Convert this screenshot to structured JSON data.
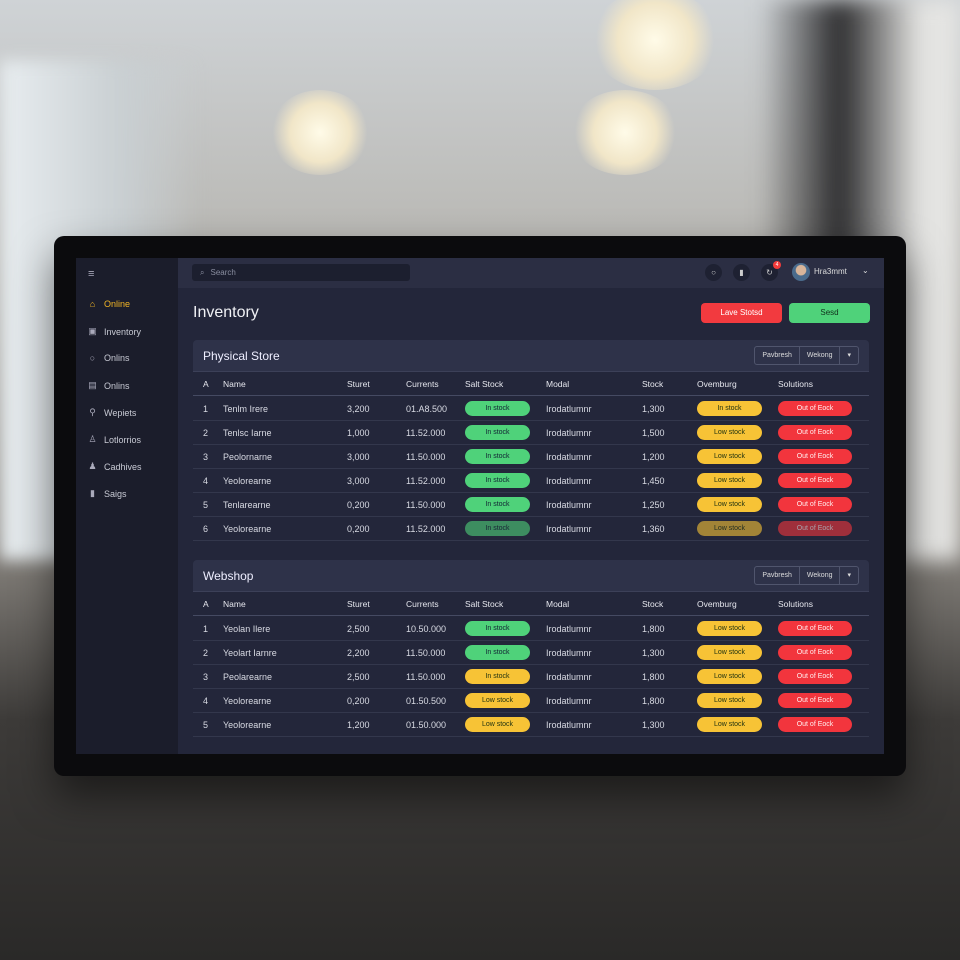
{
  "sidebar": {
    "items": [
      {
        "label": "Online",
        "icon": "home-icon",
        "active": true
      },
      {
        "label": "Inventory",
        "icon": "box-icon"
      },
      {
        "label": "Onlins",
        "icon": "circle-icon"
      },
      {
        "label": "Onlins",
        "icon": "list-icon"
      },
      {
        "label": "Wepiets",
        "icon": "pin-icon"
      },
      {
        "label": "Lotlorrios",
        "icon": "user-icon"
      },
      {
        "label": "Cadhives",
        "icon": "users-icon"
      },
      {
        "label": "Saigs",
        "icon": "chart-icon"
      }
    ]
  },
  "topbar": {
    "search_placeholder": "Search",
    "notification_count": "4",
    "user_name": "Hra3mmt"
  },
  "page": {
    "title": "Inventory",
    "btn_red": "Lave Stotsd",
    "btn_green": "Sesd"
  },
  "columns": [
    "A",
    "Name",
    "Sturet",
    "Currents",
    "Salt Stock",
    "Modal",
    "Stock",
    "Ovemburg",
    "Solutions"
  ],
  "sections": [
    {
      "title": "Physical Store",
      "seg": [
        "Pavbresh",
        "Wekong"
      ],
      "rows": [
        [
          "1",
          "Tenlm Irere",
          "3,200",
          "01.A8.500",
          [
            "In stock",
            "g"
          ],
          "Irodatlumnr",
          "1,300",
          [
            "In stock",
            "y"
          ],
          [
            "Out of Eock",
            "r"
          ]
        ],
        [
          "2",
          "Tenlsc Iarne",
          "1,000",
          "11.52.000",
          [
            "In stock",
            "g"
          ],
          "Irodatlumnr",
          "1,500",
          [
            "Low stock",
            "y"
          ],
          [
            "Out of Eock",
            "r"
          ]
        ],
        [
          "3",
          "Peolornarne",
          "3,000",
          "11.50.000",
          [
            "In stock",
            "g"
          ],
          "Irodatlumnr",
          "1,200",
          [
            "Low stock",
            "y"
          ],
          [
            "Out of Eock",
            "r"
          ]
        ],
        [
          "4",
          "Yeolorearne",
          "3,000",
          "11.52.000",
          [
            "In stock",
            "g"
          ],
          "Irodatlumnr",
          "1,450",
          [
            "Low stock",
            "y"
          ],
          [
            "Out of Eock",
            "r"
          ]
        ],
        [
          "5",
          "Tenlarearne",
          "0,200",
          "11.50.000",
          [
            "In stock",
            "g"
          ],
          "Irodatlumnr",
          "1,250",
          [
            "Low stock",
            "y"
          ],
          [
            "Out of Eock",
            "r"
          ]
        ],
        [
          "6",
          "Yeolorearne",
          "0,200",
          "11.52.000",
          [
            "In stock",
            "g"
          ],
          "Irodatlumnr",
          "1,360",
          [
            "Low stock",
            "y"
          ],
          [
            "Out of Eock",
            "r"
          ]
        ]
      ]
    },
    {
      "title": "Webshop",
      "seg": [
        "Pavbresh",
        "Wekong"
      ],
      "rows": [
        [
          "1",
          "Yeolan Ilere",
          "2,500",
          "10.50.000",
          [
            "In stock",
            "g"
          ],
          "Irodatlumnr",
          "1,800",
          [
            "Low stock",
            "y"
          ],
          [
            "Out of Eock",
            "r"
          ]
        ],
        [
          "2",
          "Yeolart Iarnre",
          "2,200",
          "11.50.000",
          [
            "In stock",
            "g"
          ],
          "Irodatlumnr",
          "1,300",
          [
            "Low stock",
            "y"
          ],
          [
            "Out of Eock",
            "r"
          ]
        ],
        [
          "3",
          "Peolarearne",
          "2,500",
          "11.50.000",
          [
            "In stock",
            "y"
          ],
          "Irodatlumnr",
          "1,800",
          [
            "Low stock",
            "y"
          ],
          [
            "Out of Eock",
            "r"
          ]
        ],
        [
          "4",
          "Yeolorearne",
          "0,200",
          "01.50.500",
          [
            "Low stock",
            "y"
          ],
          "Irodatlumnr",
          "1,800",
          [
            "Low stock",
            "y"
          ],
          [
            "Out of Eock",
            "r"
          ]
        ],
        [
          "5",
          "Yeolorearne",
          "1,200",
          "01.50.000",
          [
            "Low stock",
            "y"
          ],
          "Irodatlumnr",
          "1,300",
          [
            "Low stock",
            "y"
          ],
          [
            "Out of Eock",
            "r"
          ]
        ]
      ]
    }
  ],
  "colors": {
    "green": "#4fd27a",
    "yellow": "#f7c336",
    "red": "#f2353d",
    "accent": "#f2b526"
  }
}
